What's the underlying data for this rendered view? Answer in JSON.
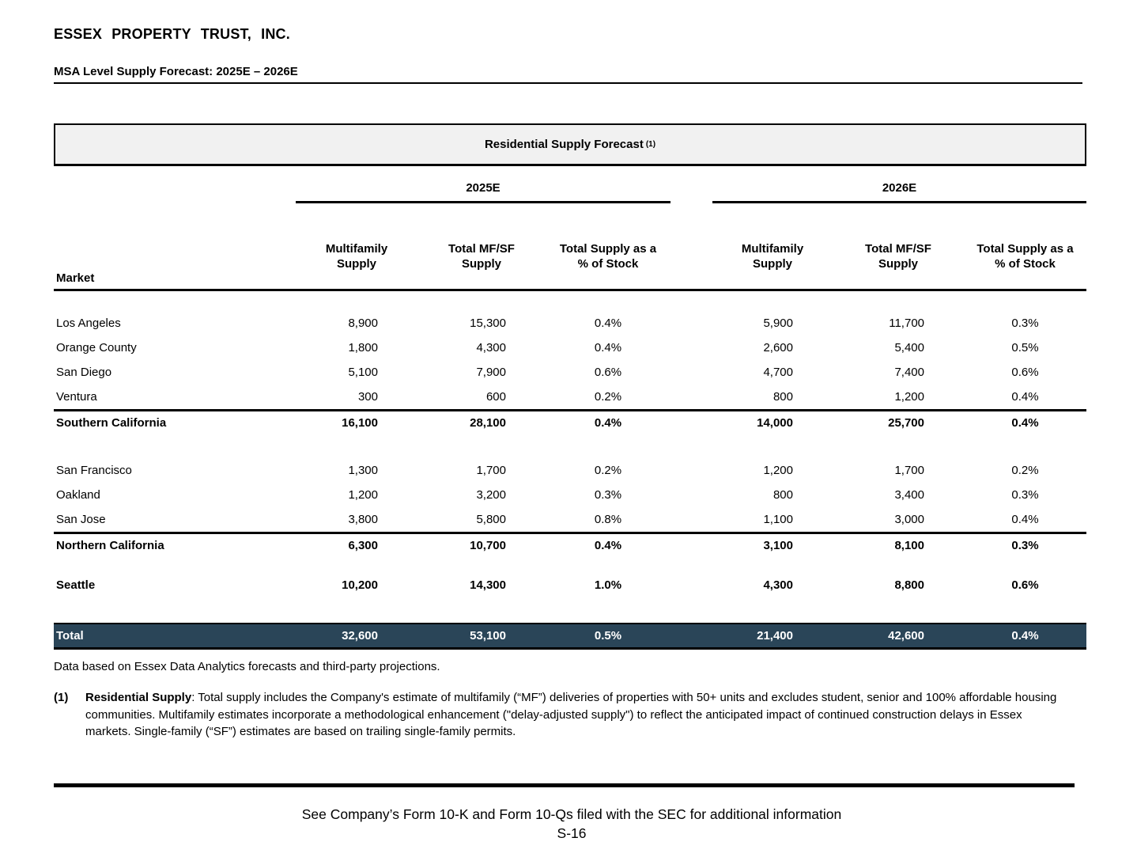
{
  "header": {
    "company": "ESSEX PROPERTY TRUST, INC.",
    "subtitle": "MSA Level Supply Forecast: 2025E – 2026E"
  },
  "table": {
    "title": "Residential Supply Forecast",
    "title_footnote_ref": "(1)",
    "year_groups": [
      "2025E",
      "2026E"
    ],
    "market_header": "Market",
    "column_headers": [
      "Multifamily\nSupply",
      "Total MF/SF\nSupply",
      "Total Supply as a\n% of Stock"
    ],
    "total_row_color": "#2a4558",
    "rows": [
      {
        "type": "data",
        "market": "Los Angeles",
        "values": [
          "8,900",
          "15,300",
          "0.4%",
          "5,900",
          "11,700",
          "0.3%"
        ]
      },
      {
        "type": "data",
        "market": "Orange County",
        "values": [
          "1,800",
          "4,300",
          "0.4%",
          "2,600",
          "5,400",
          "0.5%"
        ]
      },
      {
        "type": "data",
        "market": "San Diego",
        "values": [
          "5,100",
          "7,900",
          "0.6%",
          "4,700",
          "7,400",
          "0.6%"
        ]
      },
      {
        "type": "data",
        "market": "Ventura",
        "values": [
          "300",
          "600",
          "0.2%",
          "800",
          "1,200",
          "0.4%"
        ]
      },
      {
        "type": "subtotal",
        "market": "Southern California",
        "values": [
          "16,100",
          "28,100",
          "0.4%",
          "14,000",
          "25,700",
          "0.4%"
        ]
      },
      {
        "type": "spacer"
      },
      {
        "type": "data",
        "market": "San Francisco",
        "values": [
          "1,300",
          "1,700",
          "0.2%",
          "1,200",
          "1,700",
          "0.2%"
        ]
      },
      {
        "type": "data",
        "market": "Oakland",
        "values": [
          "1,200",
          "3,200",
          "0.3%",
          "800",
          "3,400",
          "0.3%"
        ]
      },
      {
        "type": "data",
        "market": "San Jose",
        "values": [
          "3,800",
          "5,800",
          "0.8%",
          "1,100",
          "3,000",
          "0.4%"
        ]
      },
      {
        "type": "subtotal",
        "market": "Northern California",
        "values": [
          "6,300",
          "10,700",
          "0.4%",
          "3,100",
          "8,100",
          "0.3%"
        ]
      },
      {
        "type": "spacer"
      },
      {
        "type": "bold",
        "market": "Seattle",
        "values": [
          "10,200",
          "14,300",
          "1.0%",
          "4,300",
          "8,800",
          "0.6%"
        ]
      },
      {
        "type": "spacer"
      },
      {
        "type": "total",
        "market": "Total",
        "values": [
          "32,600",
          "53,100",
          "0.5%",
          "21,400",
          "42,600",
          "0.4%"
        ]
      }
    ]
  },
  "notes": {
    "source": "Data based on Essex Data Analytics forecasts and third-party projections.",
    "footnote_marker": "(1)",
    "footnote_label": "Residential Supply",
    "footnote_text": ": Total supply includes the Company's estimate of multifamily (“MF”) deliveries of properties with 50+ units and excludes student, senior and 100% affordable housing communities. Multifamily estimates incorporate a methodological enhancement (\"delay-adjusted supply\") to reflect the anticipated impact of continued construction delays in Essex markets. Single-family (“SF”) estimates are based on trailing single-family permits."
  },
  "footer": {
    "sec_note": "See Company’s Form 10-K and Form 10-Qs filed with the SEC for additional information",
    "page_number": "S-16"
  }
}
